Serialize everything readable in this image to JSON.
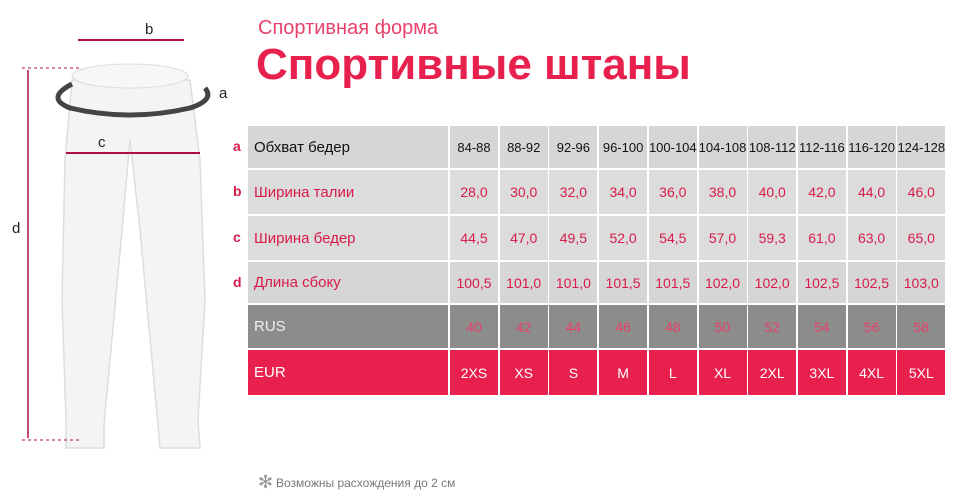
{
  "header": {
    "subtitle": "Спортивная форма",
    "title": "Спортивные штаны"
  },
  "diagram": {
    "labels": [
      "b",
      "a",
      "c",
      "d"
    ]
  },
  "table": {
    "rows": [
      {
        "key": "a",
        "label": "Обхват бедер",
        "cells": [
          "84-88",
          "88-92",
          "92-96",
          "96-100",
          "100-104",
          "104-108",
          "108-112",
          "112-116",
          "116-120",
          "124-128"
        ]
      },
      {
        "key": "b",
        "label": "Ширина талии",
        "cells": [
          "28,0",
          "30,0",
          "32,0",
          "34,0",
          "36,0",
          "38,0",
          "40,0",
          "42,0",
          "44,0",
          "46,0"
        ]
      },
      {
        "key": "c",
        "label": "Ширина бедер",
        "cells": [
          "44,5",
          "47,0",
          "49,5",
          "52,0",
          "54,5",
          "57,0",
          "59,3",
          "61,0",
          "63,0",
          "65,0"
        ]
      },
      {
        "key": "d",
        "label": "Длина сбоку",
        "cells": [
          "100,5",
          "101,0",
          "101,0",
          "101,5",
          "101,5",
          "102,0",
          "102,0",
          "102,5",
          "102,5",
          "103,0"
        ]
      },
      {
        "label": "RUS",
        "cells": [
          "40",
          "42",
          "44",
          "46",
          "48",
          "50",
          "52",
          "54",
          "56",
          "58"
        ]
      },
      {
        "label": "EUR",
        "cells": [
          "2XS",
          "XS",
          "S",
          "M",
          "L",
          "XL",
          "2XL",
          "3XL",
          "4XL",
          "5XL"
        ]
      }
    ]
  },
  "footnote": "Возможны расхождения до 2 см"
}
